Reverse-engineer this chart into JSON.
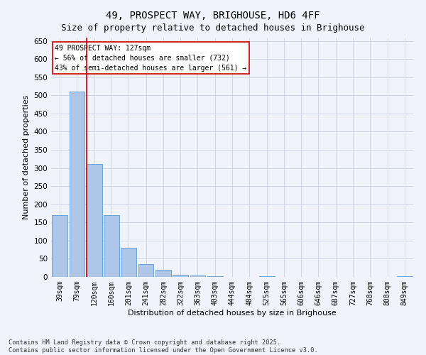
{
  "title": "49, PROSPECT WAY, BRIGHOUSE, HD6 4FF",
  "subtitle": "Size of property relative to detached houses in Brighouse",
  "xlabel": "Distribution of detached houses by size in Brighouse",
  "ylabel": "Number of detached properties",
  "categories": [
    "39sqm",
    "79sqm",
    "120sqm",
    "160sqm",
    "201sqm",
    "241sqm",
    "282sqm",
    "322sqm",
    "363sqm",
    "403sqm",
    "444sqm",
    "484sqm",
    "525sqm",
    "565sqm",
    "606sqm",
    "646sqm",
    "687sqm",
    "727sqm",
    "768sqm",
    "808sqm",
    "849sqm"
  ],
  "values": [
    170,
    510,
    310,
    170,
    80,
    35,
    20,
    5,
    3,
    2,
    0,
    0,
    2,
    0,
    0,
    0,
    0,
    0,
    0,
    0,
    2
  ],
  "bar_color": "#aec6e8",
  "bar_edgecolor": "#5b9bd5",
  "grid_color": "#d0d8e8",
  "background_color": "#f0f4fa",
  "vline_x_index": 2,
  "vline_color": "#cc0000",
  "annotation_text": "49 PROSPECT WAY: 127sqm\n← 56% of detached houses are smaller (732)\n43% of semi-detached houses are larger (561) →",
  "annotation_box_color": "#ffffff",
  "annotation_box_edgecolor": "#cc0000",
  "annotation_fontsize": 7,
  "title_fontsize": 10,
  "subtitle_fontsize": 9,
  "tick_fontsize": 7,
  "label_fontsize": 8,
  "footer_text": "Contains HM Land Registry data © Crown copyright and database right 2025.\nContains public sector information licensed under the Open Government Licence v3.0.",
  "ylim": [
    0,
    660
  ],
  "yticks": [
    0,
    50,
    100,
    150,
    200,
    250,
    300,
    350,
    400,
    450,
    500,
    550,
    600,
    650
  ]
}
